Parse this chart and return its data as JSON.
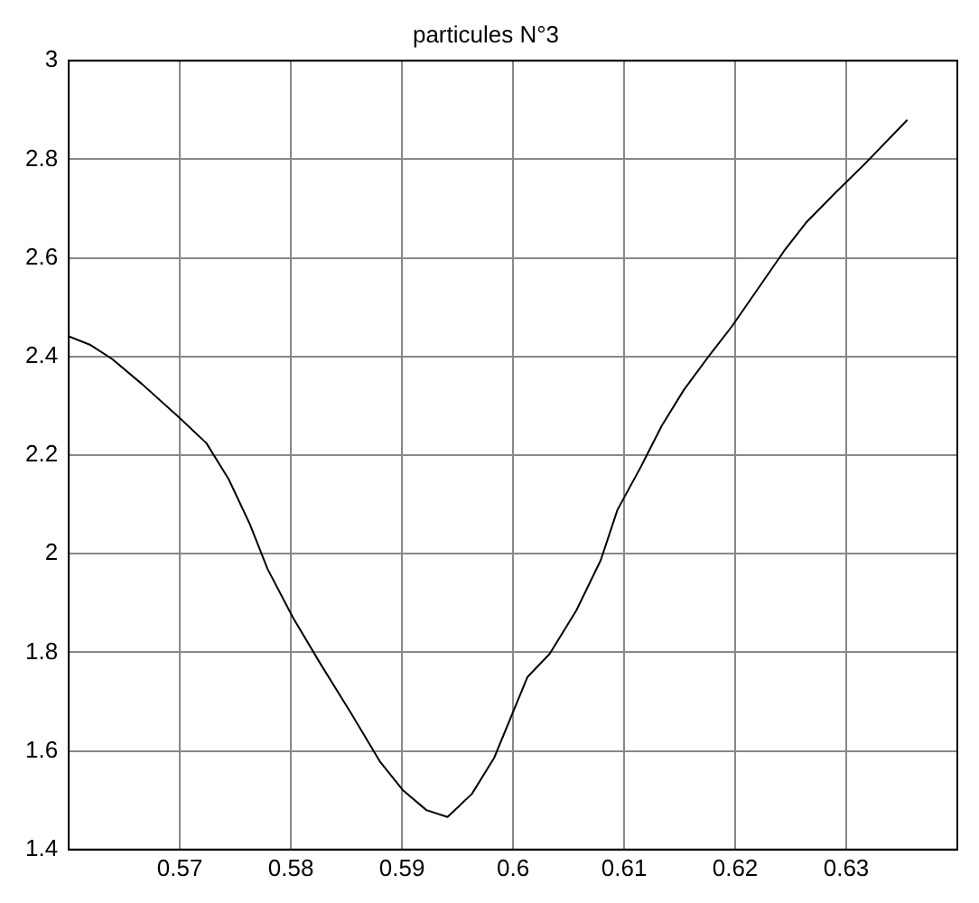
{
  "chart_data": {
    "type": "line",
    "title": "particules N°3",
    "x": [
      0.56,
      0.5619,
      0.5639,
      0.5666,
      0.57,
      0.5724,
      0.5744,
      0.5763,
      0.5779,
      0.5802,
      0.5826,
      0.5854,
      0.588,
      0.5901,
      0.5922,
      0.5941,
      0.5963,
      0.5983,
      0.6013,
      0.6033,
      0.6057,
      0.6079,
      0.6094,
      0.6115,
      0.6134,
      0.6154,
      0.6178,
      0.6197,
      0.6217,
      0.6244,
      0.6264,
      0.6291,
      0.6316,
      0.6355
    ],
    "series": [
      {
        "color": "#000000",
        "values": [
          2.441,
          2.424,
          2.395,
          2.344,
          2.275,
          2.224,
          2.151,
          2.06,
          1.969,
          1.87,
          1.779,
          1.677,
          1.579,
          1.52,
          1.48,
          1.466,
          1.513,
          1.586,
          1.75,
          1.797,
          1.885,
          1.987,
          2.089,
          2.176,
          2.26,
          2.333,
          2.406,
          2.461,
          2.526,
          2.614,
          2.672,
          2.734,
          2.789,
          2.88
        ]
      }
    ],
    "xlim": [
      0.56,
      0.64
    ],
    "xticks": [
      0.57,
      0.58,
      0.59,
      0.6,
      0.61,
      0.62,
      0.63
    ],
    "ylim": [
      1.4,
      3
    ],
    "yticks": [
      1.4,
      1.6,
      1.8,
      2,
      2.2,
      2.4,
      2.6,
      2.8,
      3
    ],
    "grid": true,
    "marker": "none",
    "line_style": "solid"
  }
}
